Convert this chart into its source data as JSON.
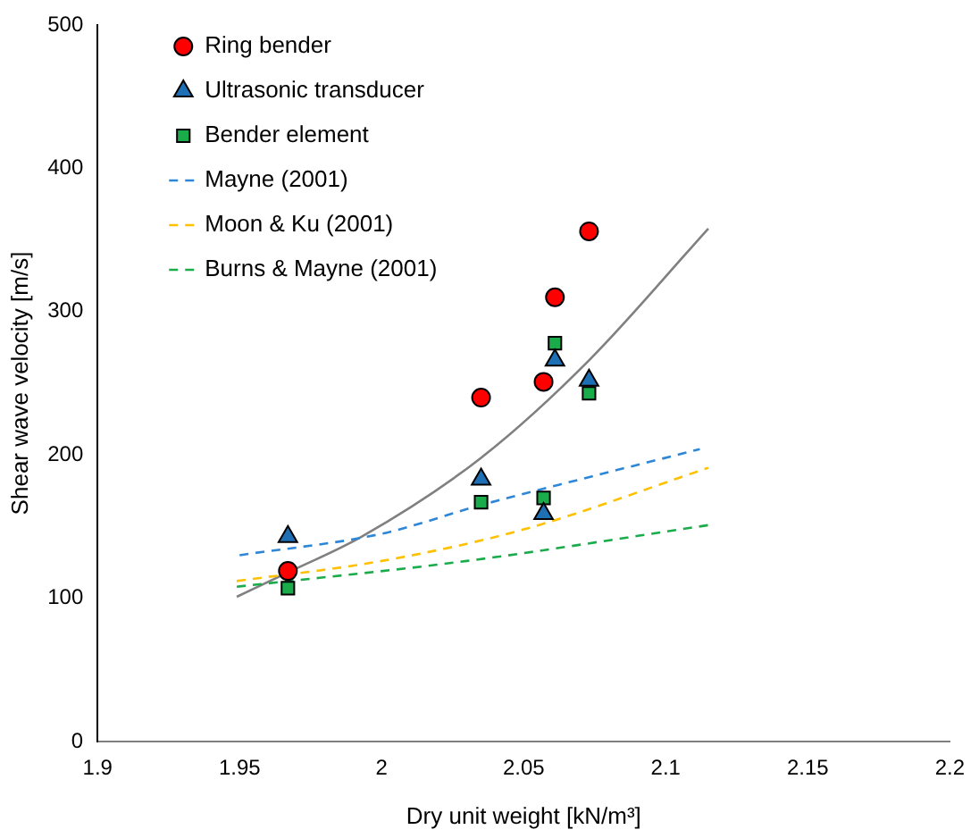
{
  "chart_data": {
    "type": "scatter",
    "xlabel": "Dry unit weight [kN/m³]",
    "ylabel": "Shear wave velocity [m/s]",
    "xlim": [
      1.9,
      2.2
    ],
    "xticks": [
      1.9,
      1.95,
      2,
      2.05,
      2.1,
      2.15,
      2.2
    ],
    "ylim": [
      0,
      500
    ],
    "yticks": [
      0,
      100,
      200,
      300,
      400,
      500
    ],
    "grid": false,
    "legend": "top left",
    "series": [
      {
        "name": "Ring bender",
        "type": "scatter",
        "marker": "circle",
        "color": "#ff0000",
        "x": [
          1.967,
          2.035,
          2.057,
          2.061,
          2.073
        ],
        "values": [
          119,
          240,
          251,
          310,
          356
        ]
      },
      {
        "name": "Ultrasonic transducer",
        "type": "scatter",
        "marker": "triangle",
        "color": "#1f6fb4",
        "x": [
          1.967,
          2.035,
          2.057,
          2.061,
          2.073
        ],
        "values": [
          143,
          183,
          159,
          266,
          252
        ]
      },
      {
        "name": "Bender element",
        "type": "scatter",
        "marker": "square",
        "color": "#1aab4b",
        "x": [
          1.967,
          2.035,
          2.057,
          2.061,
          2.073
        ],
        "values": [
          107,
          167,
          170,
          278,
          243
        ]
      },
      {
        "name": "Mayne (2001)",
        "type": "line",
        "marker": "none",
        "line_style": "dashed",
        "color": "#2e86d6",
        "x": [
          1.95,
          2.0,
          2.035,
          2.07,
          2.112
        ],
        "values": [
          130,
          145,
          165,
          183,
          204
        ]
      },
      {
        "name": "Moon & Ku (2001)",
        "type": "line",
        "marker": "none",
        "line_style": "dashed",
        "color": "#ffc000",
        "x": [
          1.949,
          2.0,
          2.05,
          2.115
        ],
        "values": [
          112,
          126,
          148,
          191
        ]
      },
      {
        "name": "Burns & Mayne (2001)",
        "type": "line",
        "marker": "none",
        "line_style": "dashed",
        "color": "#1aab4b",
        "x": [
          1.949,
          2.03,
          2.115
        ],
        "values": [
          108,
          126,
          151
        ]
      },
      {
        "type": "line",
        "marker": "none",
        "line_style": "solid",
        "color": "#808080",
        "x": [
          1.949,
          1.967,
          1.993,
          2.035,
          2.073,
          2.115
        ],
        "values": [
          101,
          118,
          143,
          198,
          266,
          358
        ]
      }
    ]
  }
}
